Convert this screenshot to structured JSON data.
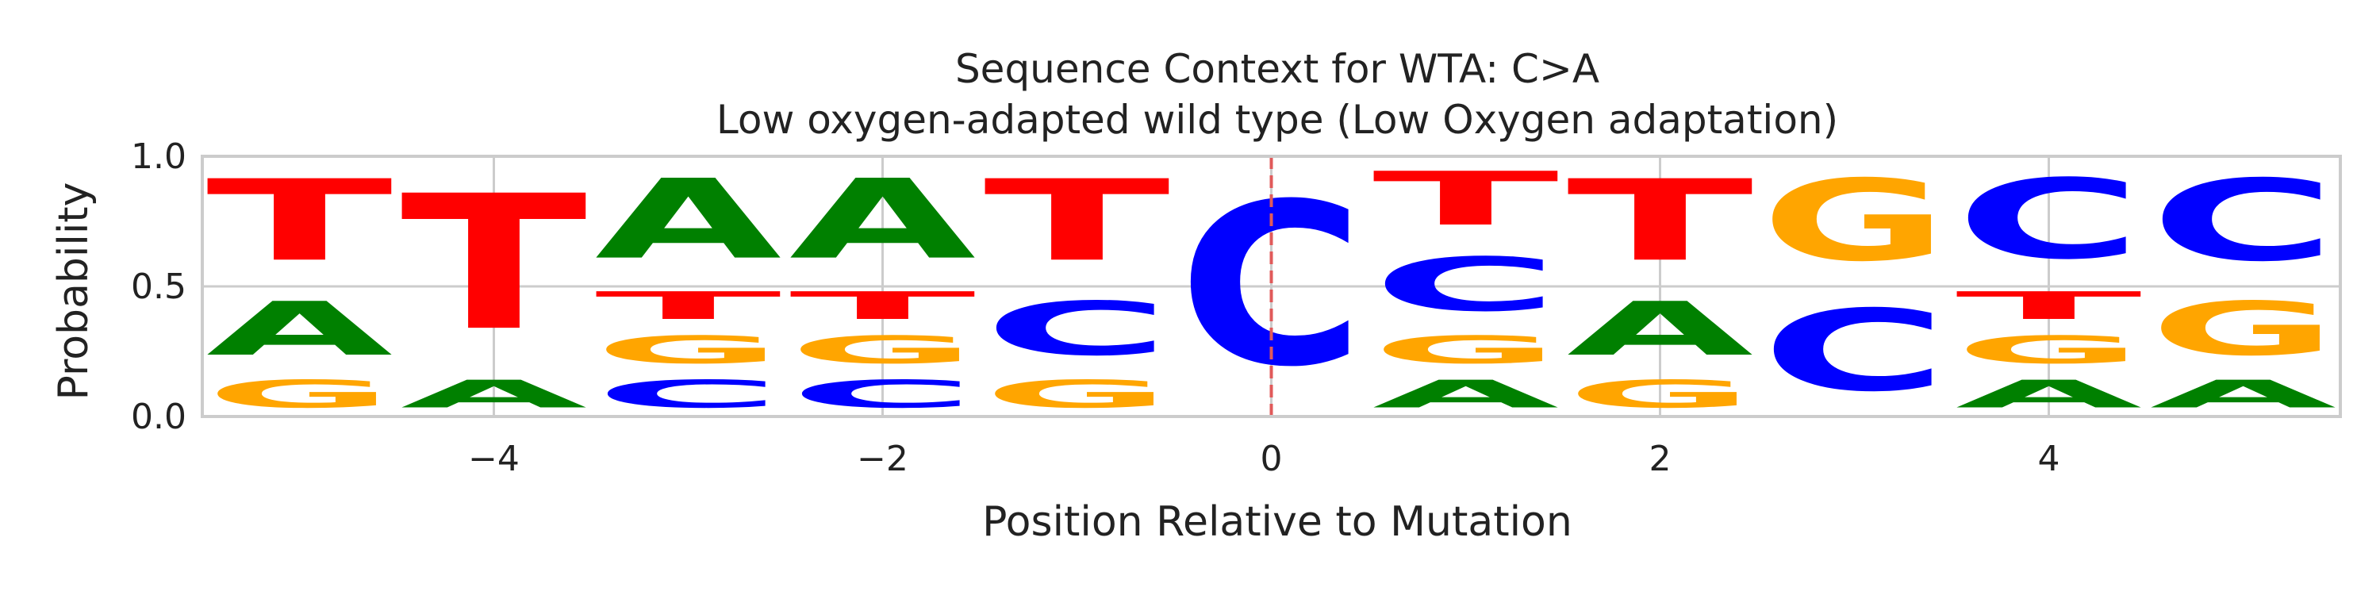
{
  "chart_data": {
    "type": "sequence_logo",
    "title_line1": "Sequence Context for WTA: C>A",
    "title_line2": "Low oxygen-adapted wild type (Low Oxygen adaptation)",
    "xlabel": "Position Relative to Mutation",
    "ylabel": "Probability",
    "xlim": [
      -5.5,
      5.5
    ],
    "ylim": [
      0,
      1
    ],
    "xticks": [
      -4,
      -2,
      0,
      2,
      4
    ],
    "xtick_labels": [
      "−4",
      "−2",
      "0",
      "2",
      "4"
    ],
    "yticks": [
      0,
      0.5,
      1
    ],
    "ytick_labels": [
      "0.0",
      "0.5",
      "1.0"
    ],
    "grid": true,
    "mutation_marker": {
      "position": 0,
      "color": "#e05a5a",
      "style": "dashed"
    },
    "letter_colors": {
      "A": "#008000",
      "C": "#0000ff",
      "G": "#ffa500",
      "T": "#ff0000"
    },
    "positions": [
      {
        "pos": -5,
        "stack": [
          {
            "letter": "G",
            "value": 0.17
          },
          {
            "letter": "A",
            "value": 0.33
          },
          {
            "letter": "T",
            "value": 0.5
          }
        ]
      },
      {
        "pos": -4,
        "stack": [
          {
            "letter": "A",
            "value": 0.17
          },
          {
            "letter": "T",
            "value": 0.83
          }
        ]
      },
      {
        "pos": -3,
        "stack": [
          {
            "letter": "C",
            "value": 0.17
          },
          {
            "letter": "G",
            "value": 0.17
          },
          {
            "letter": "T",
            "value": 0.17
          },
          {
            "letter": "A",
            "value": 0.49
          }
        ]
      },
      {
        "pos": -2,
        "stack": [
          {
            "letter": "C",
            "value": 0.17
          },
          {
            "letter": "G",
            "value": 0.17
          },
          {
            "letter": "T",
            "value": 0.17
          },
          {
            "letter": "A",
            "value": 0.49
          }
        ]
      },
      {
        "pos": -1,
        "stack": [
          {
            "letter": "G",
            "value": 0.17
          },
          {
            "letter": "C",
            "value": 0.33
          },
          {
            "letter": "T",
            "value": 0.5
          }
        ]
      },
      {
        "pos": 0,
        "stack": [
          {
            "letter": "C",
            "value": 1.0
          }
        ]
      },
      {
        "pos": 1,
        "stack": [
          {
            "letter": "A",
            "value": 0.17
          },
          {
            "letter": "G",
            "value": 0.17
          },
          {
            "letter": "C",
            "value": 0.33
          },
          {
            "letter": "T",
            "value": 0.33
          }
        ]
      },
      {
        "pos": 2,
        "stack": [
          {
            "letter": "G",
            "value": 0.17
          },
          {
            "letter": "A",
            "value": 0.33
          },
          {
            "letter": "T",
            "value": 0.5
          }
        ]
      },
      {
        "pos": 3,
        "stack": [
          {
            "letter": "C",
            "value": 0.5
          },
          {
            "letter": "G",
            "value": 0.5
          }
        ]
      },
      {
        "pos": 4,
        "stack": [
          {
            "letter": "A",
            "value": 0.17
          },
          {
            "letter": "G",
            "value": 0.17
          },
          {
            "letter": "T",
            "value": 0.17
          },
          {
            "letter": "C",
            "value": 0.49
          }
        ]
      },
      {
        "pos": 5,
        "stack": [
          {
            "letter": "A",
            "value": 0.17
          },
          {
            "letter": "G",
            "value": 0.33
          },
          {
            "letter": "C",
            "value": 0.5
          }
        ]
      }
    ]
  }
}
